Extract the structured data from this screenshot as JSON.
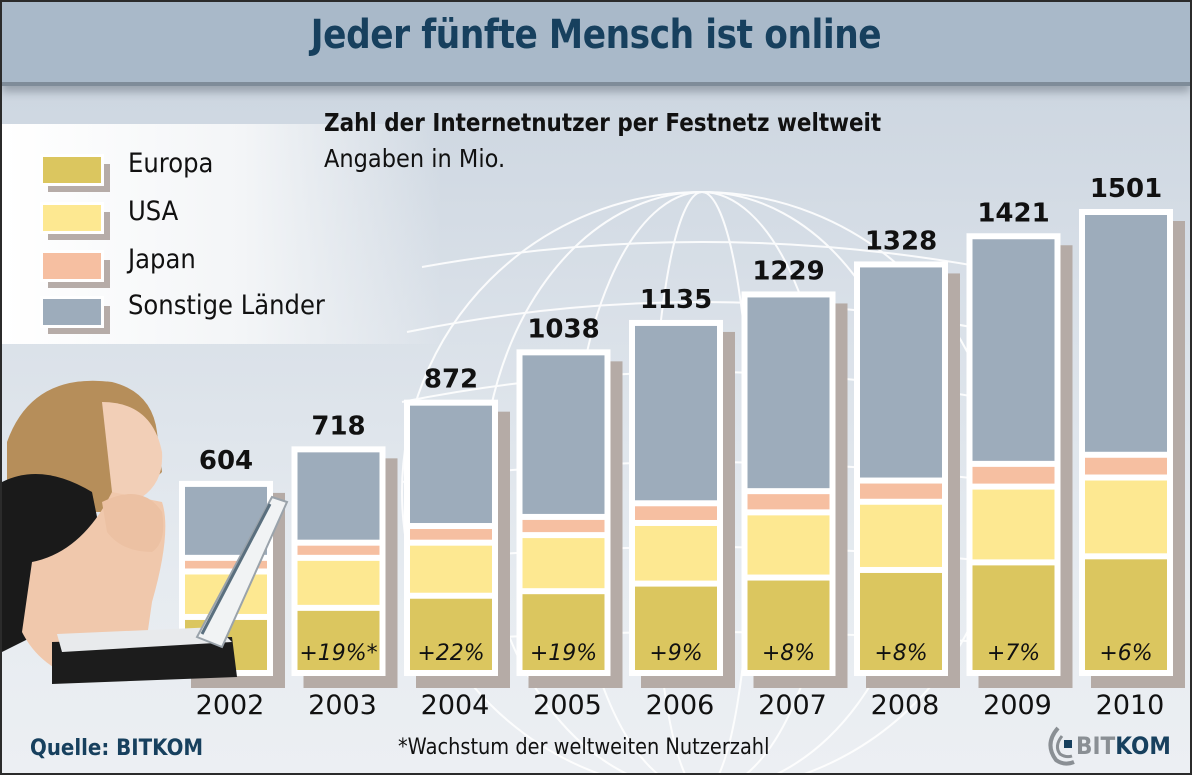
{
  "header": {
    "title": "Jeder fünfte Mensch ist online"
  },
  "legend": {
    "items": [
      {
        "label": "Europa",
        "color": "#dbc65f"
      },
      {
        "label": "USA",
        "color": "#fde891"
      },
      {
        "label": "Japan",
        "color": "#f6bfa1"
      },
      {
        "label": "Sonstige Länder",
        "color": "#9dacbb"
      }
    ]
  },
  "footer": {
    "source": "Quelle: BITKOM",
    "footnote": "*Wachstum der weltweiten Nutzerzahl",
    "logo_bit": "BIT",
    "logo_kom": "KOM"
  },
  "illustration": {
    "description": "woman-with-laptop-photo"
  },
  "chart_data": {
    "type": "bar",
    "stacked": true,
    "title": "Zahl der Internetnutzer per Festnetz weltweit",
    "subtitle": "Angaben in Mio.",
    "xlabel": "",
    "ylabel": "",
    "categories": [
      "2002",
      "2003",
      "2004",
      "2005",
      "2006",
      "2007",
      "2008",
      "2009",
      "2010"
    ],
    "totals": [
      604,
      718,
      872,
      1038,
      1135,
      1229,
      1328,
      1421,
      1501
    ],
    "total_labels": [
      "604",
      "718",
      "872",
      "1038",
      "1135",
      "1229",
      "1328",
      "1421",
      "1501"
    ],
    "growth_labels": [
      "",
      "+19%*",
      "+22%",
      "+19%",
      "+9%",
      "+8%",
      "+8%",
      "+7%",
      "+6%"
    ],
    "series": [
      {
        "name": "Europa",
        "color": "#dbc65f",
        "values": [
          175,
          205,
          245,
          260,
          285,
          305,
          330,
          355,
          375
        ]
      },
      {
        "name": "USA",
        "color": "#fde891",
        "values": [
          150,
          165,
          175,
          185,
          200,
          215,
          225,
          250,
          260
        ]
      },
      {
        "name": "Japan",
        "color": "#f6bfa1",
        "values": [
          45,
          50,
          55,
          60,
          65,
          70,
          70,
          75,
          75
        ]
      },
      {
        "name": "Sonstige Länder",
        "color": "#9dacbb",
        "values": [
          234,
          298,
          397,
          533,
          585,
          639,
          703,
          741,
          791
        ]
      }
    ],
    "ylim": [
      0,
      1501
    ],
    "grid": false,
    "legend_position": "top-left"
  }
}
